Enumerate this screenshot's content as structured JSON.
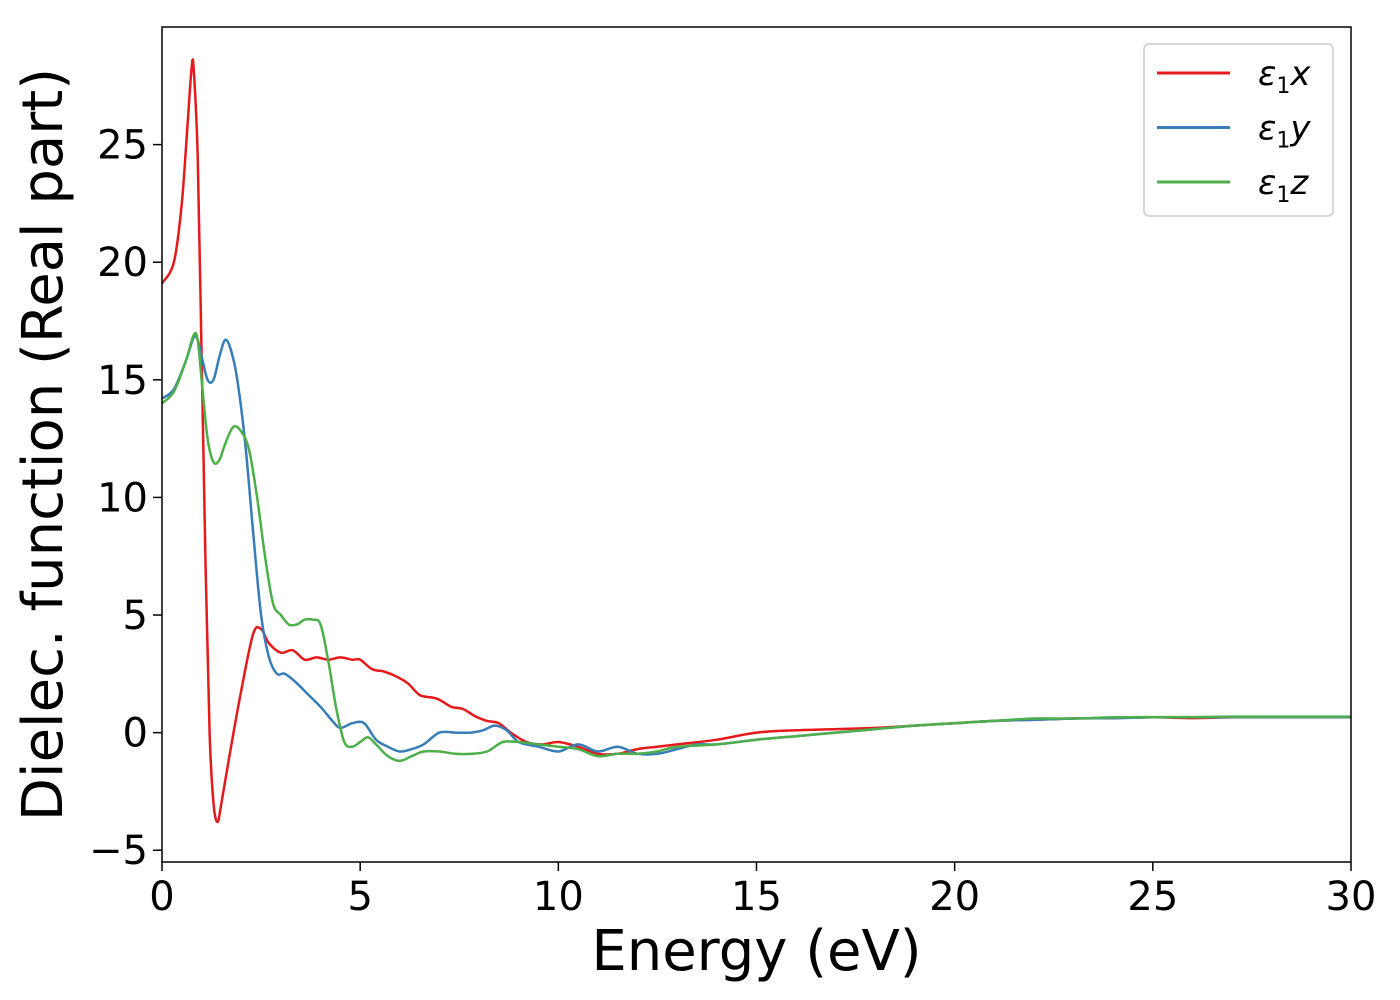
{
  "chart_data": {
    "type": "line",
    "title": "",
    "xlabel": "Energy (eV)",
    "ylabel": "Dielec. function (Real part)",
    "xlim": [
      0,
      30
    ],
    "ylim": [
      -5.5,
      30
    ],
    "xticks": [
      0,
      5,
      10,
      15,
      20,
      25,
      30
    ],
    "yticks": [
      -5,
      0,
      5,
      10,
      15,
      20,
      25
    ],
    "grid": false,
    "legend_position": "top-right",
    "series": [
      {
        "name": "ε1x",
        "legend": {
          "main": "ε",
          "sub": "1",
          "tail": "x"
        },
        "color": "#e41a1c",
        "x": [
          0,
          0.3,
          0.5,
          0.65,
          0.75,
          0.8,
          0.9,
          1.0,
          1.1,
          1.2,
          1.3,
          1.4,
          1.5,
          1.7,
          2.0,
          2.3,
          2.5,
          2.7,
          3.0,
          3.3,
          3.6,
          3.9,
          4.2,
          4.5,
          4.8,
          5.0,
          5.3,
          5.6,
          5.9,
          6.2,
          6.5,
          6.8,
          7.0,
          7.3,
          7.6,
          7.9,
          8.2,
          8.5,
          8.8,
          9.2,
          9.6,
          10.0,
          10.5,
          11.0,
          11.5,
          12.0,
          12.5,
          13.0,
          14.0,
          15.0,
          16.0,
          17.0,
          18.0,
          19.0,
          20.0,
          21.0,
          22.0,
          23.0,
          24.0,
          25.0,
          26.0,
          27.0,
          28.0,
          29.0,
          30.0
        ],
        "y": [
          19.1,
          20.0,
          22.5,
          26.0,
          28.3,
          28.2,
          24.5,
          16.0,
          7.0,
          0.0,
          -3.0,
          -3.8,
          -3.0,
          -1.0,
          1.8,
          4.2,
          4.4,
          3.8,
          3.4,
          3.5,
          3.1,
          3.2,
          3.1,
          3.2,
          3.1,
          3.1,
          2.7,
          2.6,
          2.4,
          2.1,
          1.6,
          1.5,
          1.4,
          1.1,
          1.0,
          0.7,
          0.5,
          0.4,
          0.0,
          -0.4,
          -0.5,
          -0.4,
          -0.6,
          -0.9,
          -0.9,
          -0.7,
          -0.6,
          -0.5,
          -0.3,
          0.0,
          0.1,
          0.15,
          0.2,
          0.3,
          0.4,
          0.5,
          0.55,
          0.6,
          0.62,
          0.65,
          0.62,
          0.65,
          0.66,
          0.66,
          0.66
        ]
      },
      {
        "name": "ε1y",
        "legend": {
          "main": "ε",
          "sub": "1",
          "tail": "y"
        },
        "color": "#377eb8",
        "x": [
          0,
          0.3,
          0.6,
          0.8,
          0.9,
          1.0,
          1.15,
          1.3,
          1.45,
          1.6,
          1.75,
          1.9,
          2.1,
          2.3,
          2.5,
          2.7,
          2.9,
          3.1,
          3.4,
          3.7,
          4.0,
          4.3,
          4.5,
          4.8,
          5.1,
          5.4,
          5.7,
          6.0,
          6.3,
          6.6,
          7.0,
          7.4,
          7.8,
          8.1,
          8.4,
          8.7,
          9.0,
          9.5,
          10.0,
          10.5,
          11.0,
          11.5,
          12.0,
          12.5,
          13.0,
          13.5,
          14.0,
          15.0,
          16.0,
          17.0,
          18.0,
          19.0,
          20.0,
          21.0,
          22.0,
          23.0,
          24.0,
          25.0,
          26.0,
          27.0,
          28.0,
          29.0,
          30.0
        ],
        "y": [
          14.2,
          14.6,
          15.8,
          16.8,
          16.7,
          16.0,
          15.0,
          15.0,
          16.0,
          16.7,
          16.2,
          15.0,
          12.3,
          8.5,
          5.0,
          3.2,
          2.5,
          2.5,
          2.1,
          1.6,
          1.1,
          0.5,
          0.2,
          0.4,
          0.4,
          -0.3,
          -0.6,
          -0.8,
          -0.7,
          -0.5,
          0.0,
          0.0,
          0.0,
          0.1,
          0.3,
          0.1,
          -0.4,
          -0.6,
          -0.8,
          -0.5,
          -0.8,
          -0.6,
          -0.9,
          -0.9,
          -0.7,
          -0.5,
          -0.5,
          -0.3,
          -0.15,
          0.0,
          0.15,
          0.3,
          0.4,
          0.5,
          0.55,
          0.6,
          0.62,
          0.65,
          0.65,
          0.66,
          0.66,
          0.66,
          0.66
        ]
      },
      {
        "name": "ε1z",
        "legend": {
          "main": "ε",
          "sub": "1",
          "tail": "z"
        },
        "color": "#4daf4a",
        "x": [
          0,
          0.3,
          0.6,
          0.8,
          0.9,
          1.0,
          1.15,
          1.3,
          1.45,
          1.6,
          1.8,
          2.0,
          2.2,
          2.4,
          2.6,
          2.8,
          3.0,
          3.2,
          3.4,
          3.6,
          3.8,
          4.0,
          4.2,
          4.4,
          4.6,
          4.8,
          5.0,
          5.2,
          5.4,
          5.7,
          6.0,
          6.3,
          6.6,
          7.0,
          7.4,
          7.8,
          8.2,
          8.6,
          9.0,
          9.5,
          10.0,
          10.5,
          11.0,
          11.5,
          12.0,
          12.5,
          13.0,
          14.0,
          15.0,
          16.0,
          17.0,
          18.0,
          19.0,
          20.0,
          21.0,
          22.0,
          23.0,
          24.0,
          25.0,
          26.0,
          27.0,
          28.0,
          29.0,
          30.0
        ],
        "y": [
          14.0,
          14.5,
          15.8,
          16.9,
          16.7,
          15.0,
          12.5,
          11.5,
          11.6,
          12.3,
          13.0,
          12.8,
          12.0,
          10.0,
          7.5,
          5.5,
          5.0,
          4.6,
          4.6,
          4.8,
          4.8,
          4.6,
          3.0,
          1.0,
          -0.4,
          -0.6,
          -0.4,
          -0.2,
          -0.5,
          -1.0,
          -1.2,
          -1.0,
          -0.8,
          -0.8,
          -0.9,
          -0.9,
          -0.8,
          -0.4,
          -0.4,
          -0.5,
          -0.6,
          -0.7,
          -1.0,
          -0.9,
          -0.9,
          -0.8,
          -0.6,
          -0.5,
          -0.3,
          -0.15,
          0.0,
          0.15,
          0.3,
          0.4,
          0.5,
          0.6,
          0.6,
          0.65,
          0.66,
          0.66,
          0.68,
          0.68,
          0.68,
          0.68
        ]
      }
    ]
  }
}
